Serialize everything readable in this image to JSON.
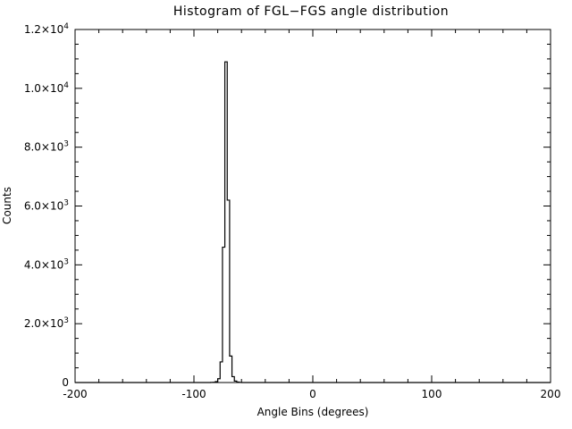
{
  "chart_data": {
    "type": "line",
    "style": "histogram-step-outline",
    "title": "Histogram of FGL−FGS angle distribution",
    "xlabel": "Angle Bins (degrees)",
    "ylabel": "Counts",
    "xlim": [
      -200,
      200
    ],
    "ylim": [
      0,
      12000
    ],
    "grid": false,
    "legend": "none",
    "background": "#ffffff",
    "line_color": "#000000",
    "axis_color": "#000000",
    "x_ticks": {
      "values": [
        -200,
        -100,
        0,
        100,
        200
      ],
      "labels": [
        "-200",
        "-100",
        "0",
        "100",
        "200"
      ],
      "minor_step": 20
    },
    "y_ticks": {
      "values": [
        0,
        2000,
        4000,
        6000,
        8000,
        10000,
        12000
      ],
      "labels": [
        "0",
        "2.0×10^3",
        "4.0×10^3",
        "6.0×10^3",
        "8.0×10^3",
        "1.0×10^4",
        "1.2×10^4"
      ],
      "minor_step": 500
    },
    "histogram": {
      "bin_edges": [
        -86,
        -84,
        -82,
        -80,
        -78,
        -76,
        -74,
        -72,
        -70,
        -68,
        -66,
        -64,
        -62,
        -60
      ],
      "counts": [
        3,
        10,
        30,
        130,
        700,
        4600,
        10900,
        6200,
        900,
        200,
        50,
        15,
        4
      ],
      "baseline": 0,
      "peak_x": -73,
      "peak_count": 10900
    }
  }
}
